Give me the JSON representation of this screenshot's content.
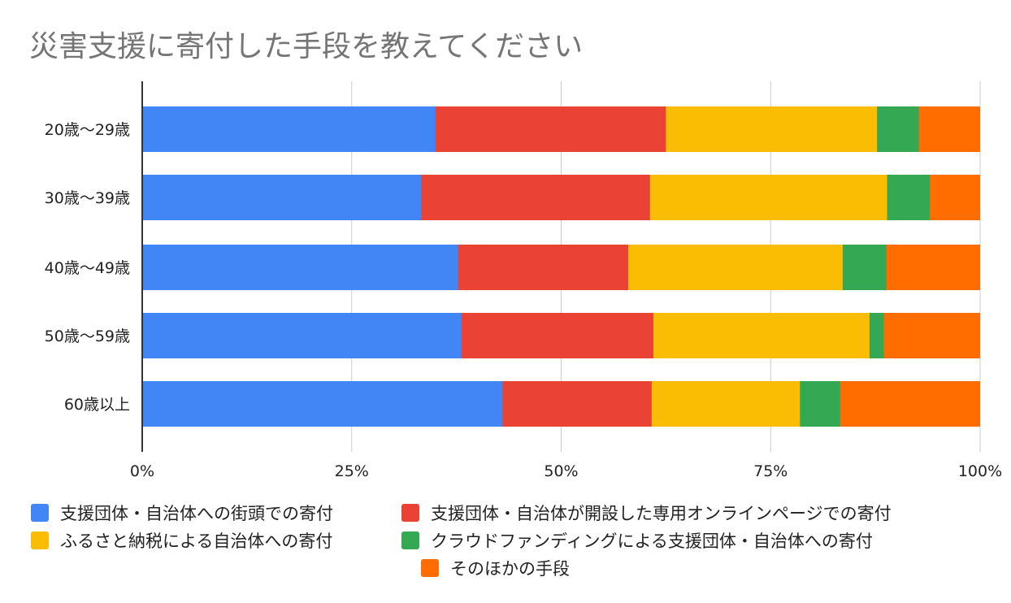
{
  "chart_data": {
    "type": "bar",
    "orientation": "horizontal",
    "stacked": "percent",
    "title": "災害支援に寄付した手段を教えてください",
    "categories": [
      "20歳〜29歳",
      "30歳〜39歳",
      "40歳〜49歳",
      "50歳〜59歳",
      "60歳以上"
    ],
    "series": [
      {
        "name": "支援団体・自治体への街頭での寄付",
        "color": "#4285F4",
        "values": [
          35,
          33.3,
          37.7,
          38.1,
          43
        ]
      },
      {
        "name": "支援団体・自治体が開設した専用オンラインページでの寄付",
        "color": "#EA4335",
        "values": [
          27.5,
          27.3,
          20.3,
          22.9,
          17.8
        ]
      },
      {
        "name": "ふるさと納税による自治体への寄付",
        "color": "#FBBC04",
        "values": [
          25.2,
          28.3,
          25.6,
          25.8,
          17.7
        ]
      },
      {
        "name": "クラウドファンディングによる支援団体・自治体への寄付",
        "color": "#34A853",
        "values": [
          5,
          5.1,
          5.2,
          1.7,
          4.8
        ]
      },
      {
        "name": "そのほかの手段",
        "color": "#FF6D01",
        "values": [
          7.3,
          6.0,
          11.2,
          11.5,
          16.7
        ]
      }
    ],
    "x_ticks": [
      "0%",
      "25%",
      "50%",
      "75%",
      "100%"
    ],
    "xlim": [
      0,
      100
    ],
    "grid": true,
    "legend_position": "bottom"
  }
}
